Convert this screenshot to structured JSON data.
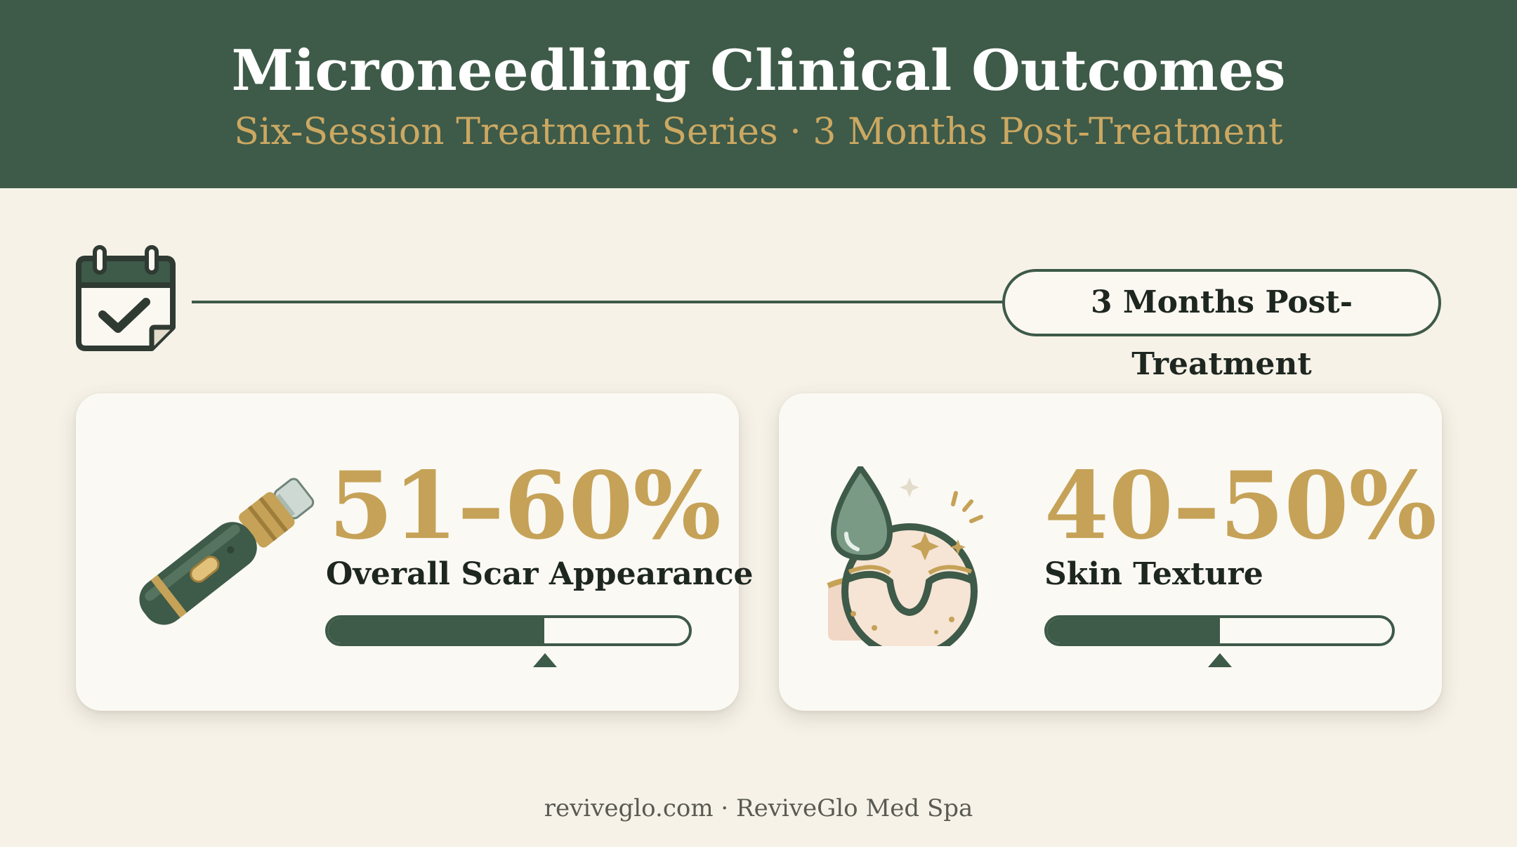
{
  "header": {
    "title": "Microneedling Clinical Outcomes",
    "subtitle": "Six-Session Treatment Series · 3 Months Post-Treatment"
  },
  "timeline": {
    "icon": "calendar-check-icon",
    "label": "3 Months Post-Treatment"
  },
  "stats": [
    {
      "icon": "microneedling-pen-icon",
      "value": "51–60%",
      "label": "Overall Scar Appearance",
      "progress_fraction": 0.6
    },
    {
      "icon": "skin-droplet-icon",
      "value": "40–50%",
      "label": "Skin Texture",
      "progress_fraction": 0.5
    }
  ],
  "footer": {
    "text": "reviveglo.com · ReviveGlo Med Spa"
  },
  "colors": {
    "header_bg": "#3e5a48",
    "accent_gold": "#c5a257",
    "page_bg": "#f6f2e8",
    "text_dark": "#1e2620"
  }
}
